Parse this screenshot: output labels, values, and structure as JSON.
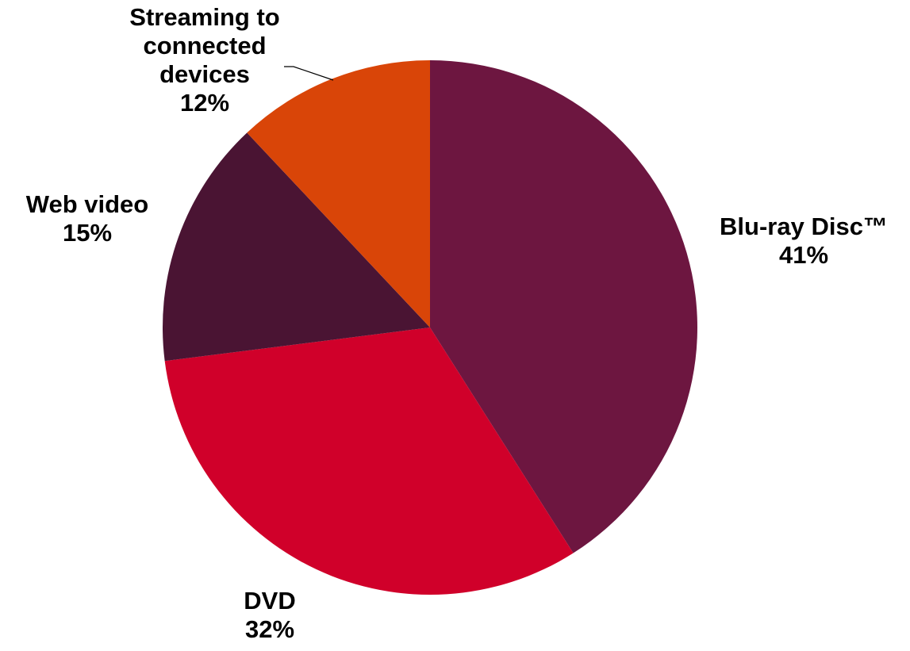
{
  "chart_data": {
    "type": "pie",
    "title": "",
    "slices": [
      {
        "label": "Blu-ray Disc™",
        "label_lines": [
          "Blu-ray Disc™"
        ],
        "value": 41,
        "value_label": "41%",
        "color": "#6d1640"
      },
      {
        "label": "DVD",
        "label_lines": [
          "DVD"
        ],
        "value": 32,
        "value_label": "32%",
        "color": "#d0002a"
      },
      {
        "label": "Web video",
        "label_lines": [
          "Web video"
        ],
        "value": 15,
        "value_label": "15%",
        "color": "#4a1433"
      },
      {
        "label": "Streaming to connected devices",
        "label_lines": [
          "Streaming to",
          "connected",
          "devices"
        ],
        "value": 12,
        "value_label": "12%",
        "color": "#d94508"
      }
    ],
    "start_angle": "12 o'clock",
    "direction": "clockwise",
    "legend": "none"
  }
}
